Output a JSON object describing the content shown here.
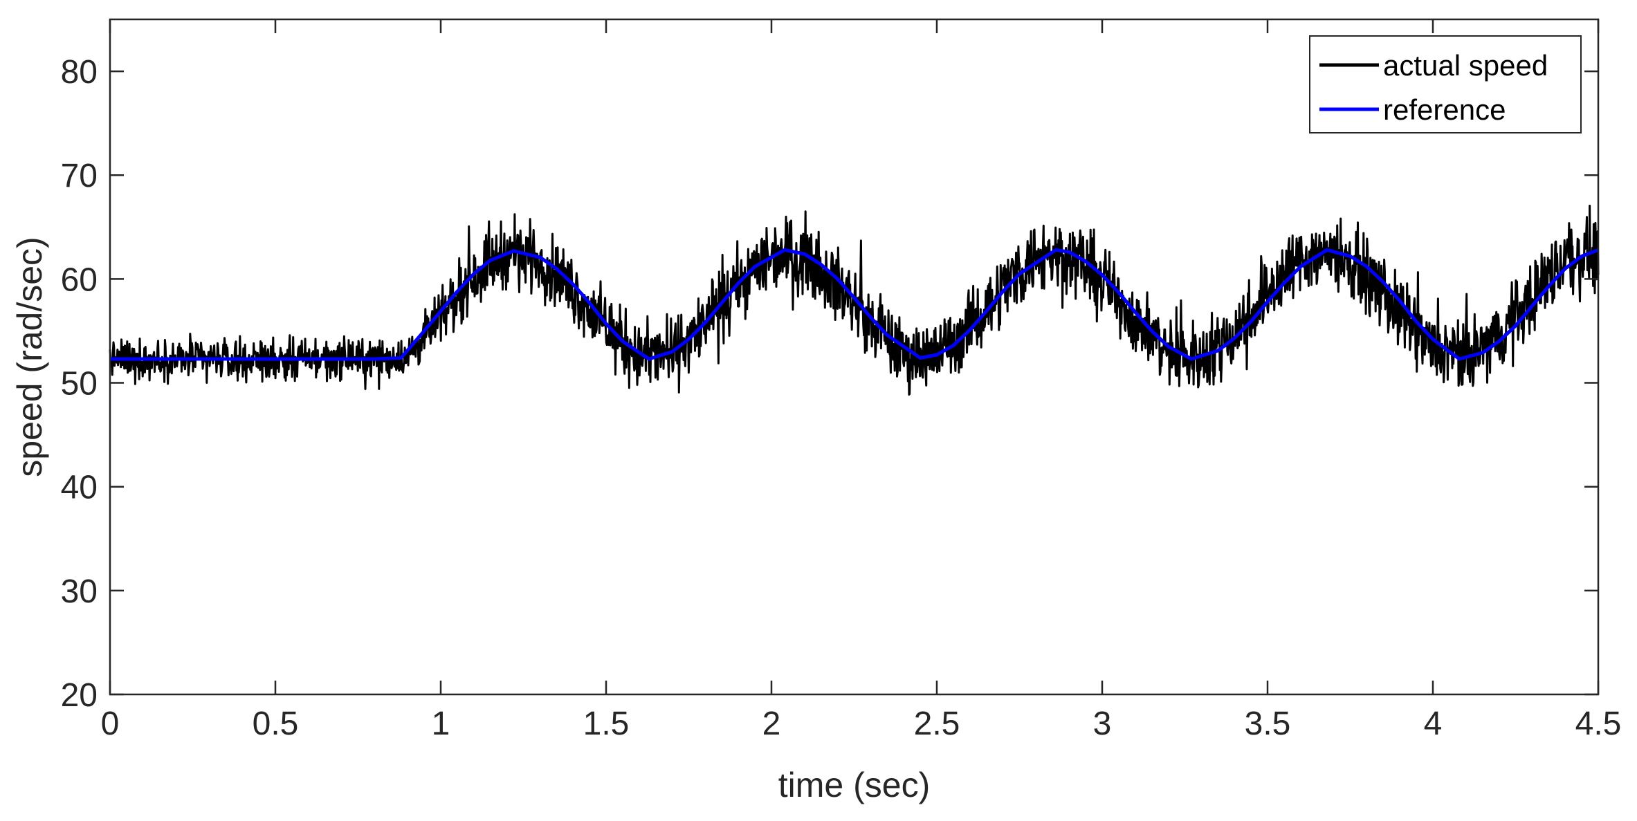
{
  "chart_data": {
    "type": "line",
    "title": "",
    "xlabel": "time (sec)",
    "ylabel": "speed (rad/sec)",
    "xlim": [
      0,
      4.5
    ],
    "ylim": [
      20,
      85
    ],
    "xticks": [
      0,
      0.5,
      1,
      1.5,
      2,
      2.5,
      3,
      3.5,
      4,
      4.5
    ],
    "xtick_labels": [
      "0",
      "0.5",
      "1",
      "1.5",
      "2",
      "2.5",
      "3",
      "3.5",
      "4",
      "4.5"
    ],
    "yticks": [
      20,
      30,
      40,
      50,
      60,
      70,
      80
    ],
    "ytick_labels": [
      "20",
      "30",
      "40",
      "50",
      "60",
      "70",
      "80"
    ],
    "grid": false,
    "legend": {
      "placement": "top-right"
    },
    "series": [
      {
        "name": "actual speed",
        "color": "#000000",
        "style": "noisy signal tracking the reference",
        "x": [
          0,
          0.1,
          0.2,
          0.3,
          0.4,
          0.5,
          0.6,
          0.7,
          0.8,
          0.9,
          1.0,
          1.1,
          1.2,
          1.3,
          1.4,
          1.5,
          1.6,
          1.7,
          1.8,
          1.9,
          2.0,
          2.1,
          2.2,
          2.3,
          2.4,
          2.5,
          2.6,
          2.7,
          2.8,
          2.9,
          3.0,
          3.1,
          3.2,
          3.3,
          3.4,
          3.5,
          3.6,
          3.7,
          3.8,
          3.9,
          4.0,
          4.1,
          4.2,
          4.3,
          4.4,
          4.5
        ],
        "y_mean": [
          52.3,
          52.3,
          52.3,
          52.3,
          52.3,
          52.3,
          52.3,
          52.3,
          52.3,
          52.5,
          56.3,
          60.4,
          62.6,
          61.9,
          59.0,
          55.2,
          52.6,
          52.8,
          55.6,
          59.5,
          62.4,
          62.3,
          59.6,
          55.8,
          52.7,
          52.7,
          55.3,
          59.2,
          62.2,
          62.5,
          60.0,
          56.1,
          52.9,
          52.4,
          54.8,
          58.8,
          62.0,
          62.7,
          60.4,
          56.6,
          53.2,
          52.3,
          54.5,
          58.4,
          61.9,
          62.8
        ],
        "y_spread": [
          5.0,
          5.0,
          5.0,
          5.0,
          5.0,
          5.0,
          5.0,
          5.0,
          5.0,
          5.0,
          6.5,
          8.0,
          8.5,
          8.5,
          8.5,
          8.5,
          8.5,
          8.5,
          8.5,
          8.5,
          9.5,
          9.5,
          9.0,
          8.5,
          8.5,
          8.5,
          8.5,
          9.0,
          9.5,
          9.5,
          9.0,
          8.5,
          9.0,
          9.0,
          9.0,
          9.0,
          9.0,
          9.0,
          9.0,
          9.0,
          9.0,
          9.0,
          9.0,
          9.5,
          9.5,
          9.5
        ]
      },
      {
        "name": "reference",
        "color": "#0000ff",
        "x": [
          0,
          0.1,
          0.2,
          0.3,
          0.4,
          0.5,
          0.6,
          0.7,
          0.8,
          0.88,
          0.95,
          1.0,
          1.05,
          1.1,
          1.15,
          1.22,
          1.3,
          1.35,
          1.4,
          1.45,
          1.5,
          1.55,
          1.63,
          1.7,
          1.75,
          1.8,
          1.85,
          1.9,
          1.95,
          2.04,
          2.1,
          2.15,
          2.2,
          2.25,
          2.3,
          2.35,
          2.45,
          2.5,
          2.55,
          2.6,
          2.65,
          2.7,
          2.75,
          2.86,
          2.9,
          2.95,
          3.0,
          3.05,
          3.1,
          3.15,
          3.2,
          3.27,
          3.35,
          3.4,
          3.45,
          3.5,
          3.55,
          3.6,
          3.68,
          3.75,
          3.8,
          3.85,
          3.9,
          3.95,
          4.0,
          4.08,
          4.15,
          4.2,
          4.25,
          4.3,
          4.35,
          4.4,
          4.45,
          4.5
        ],
        "y": [
          52.3,
          52.3,
          52.3,
          52.3,
          52.3,
          52.3,
          52.3,
          52.3,
          52.3,
          52.4,
          55.0,
          56.9,
          58.8,
          60.5,
          61.8,
          62.7,
          62.1,
          61.0,
          59.5,
          57.7,
          55.7,
          54.0,
          52.3,
          53.0,
          54.2,
          55.8,
          57.7,
          59.6,
          61.2,
          62.8,
          62.4,
          61.4,
          60.0,
          58.2,
          56.3,
          54.6,
          52.4,
          52.7,
          53.6,
          55.1,
          56.9,
          58.8,
          60.5,
          62.8,
          62.6,
          61.7,
          60.4,
          58.7,
          56.8,
          55.0,
          53.5,
          52.3,
          53.1,
          54.3,
          55.9,
          57.8,
          59.6,
          61.2,
          62.8,
          62.2,
          61.2,
          59.7,
          57.9,
          55.9,
          54.2,
          52.3,
          52.9,
          54.0,
          55.5,
          57.4,
          59.3,
          61.0,
          62.2,
          62.8
        ]
      }
    ]
  }
}
